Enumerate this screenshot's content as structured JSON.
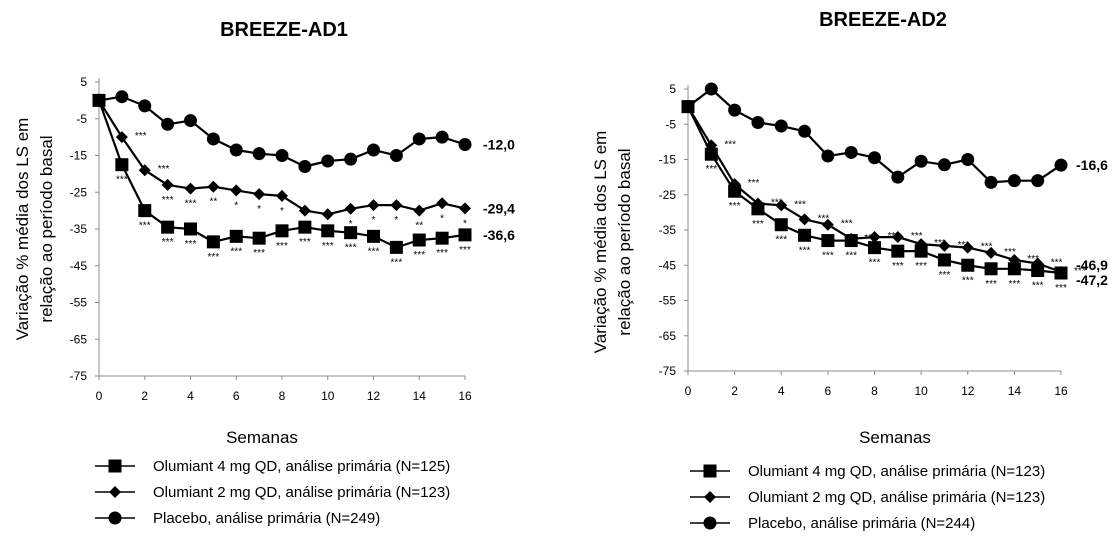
{
  "chart_data": [
    {
      "type": "line",
      "title": "BREEZE-AD1",
      "xlabel": "Semanas",
      "ylabel_lines": [
        "Variação % média dos LS em",
        "relação ao período basal"
      ],
      "xlim": [
        0,
        16
      ],
      "ylim": [
        -75,
        5
      ],
      "xticks": [
        "0",
        "2",
        "4",
        "6",
        "8",
        "10",
        "12",
        "14",
        "16"
      ],
      "yticks": [
        "5",
        "-5",
        "-15",
        "-25",
        "-35",
        "-45",
        "-55",
        "-65",
        "-75"
      ],
      "grid": false,
      "legend_position": "bottom",
      "x": [
        0,
        1,
        2,
        3,
        4,
        5,
        6,
        7,
        8,
        9,
        10,
        11,
        12,
        13,
        14,
        15,
        16
      ],
      "series": [
        {
          "name": "Olumiant 4 mg QD, análise primária (N=125)",
          "marker": "square",
          "values": [
            0,
            -17.5,
            -30,
            -34.5,
            -35,
            -38.5,
            -37,
            -37.5,
            -35.5,
            -34.5,
            -35.5,
            -36,
            -37,
            -40,
            -38,
            -37.5,
            -36.6
          ],
          "end_label": "-36,6",
          "sig_below": [
            "",
            "***",
            "***",
            "***",
            "***",
            "***",
            "***",
            "***",
            "***",
            "***",
            "***",
            "***",
            "***",
            "***",
            "***",
            "***",
            "***"
          ]
        },
        {
          "name": "Olumiant 2 mg QD, análise primária (N=123)",
          "marker": "diamond",
          "values": [
            0,
            -10,
            -19,
            -23,
            -24,
            -23.5,
            -24.5,
            -25.5,
            -26,
            -30,
            -31,
            -29.5,
            -28.5,
            -28.5,
            -30,
            -28,
            -29.4
          ],
          "end_label": "-29,4",
          "sig_above": [
            "",
            "***",
            "***",
            "",
            "",
            "",
            "",
            "",
            "",
            "",
            "",
            "",
            "",
            "",
            "",
            "",
            ""
          ],
          "sig_below": [
            "",
            "",
            "",
            "***",
            "***",
            "**",
            "*",
            "*",
            "*",
            "**",
            "**",
            "*",
            "*",
            "*",
            "**",
            "*",
            "*"
          ]
        },
        {
          "name": "Placebo, análise primária (N=249)",
          "marker": "circle",
          "values": [
            0,
            1,
            -1.5,
            -6.5,
            -5.5,
            -10.5,
            -13.5,
            -14.5,
            -15,
            -18,
            -16.5,
            -16,
            -13.5,
            -15,
            -10.5,
            -10,
            -12
          ],
          "end_label": "-12,0"
        }
      ]
    },
    {
      "type": "line",
      "title": "BREEZE-AD2",
      "xlabel": "Semanas",
      "ylabel_lines": [
        "Variação % média dos LS em",
        "relação ao período basal"
      ],
      "xlim": [
        0,
        16
      ],
      "ylim": [
        -75,
        5
      ],
      "xticks": [
        "0",
        "2",
        "4",
        "6",
        "8",
        "10",
        "12",
        "14",
        "16"
      ],
      "yticks": [
        "5",
        "-5",
        "-15",
        "-25",
        "-35",
        "-45",
        "-55",
        "-65",
        "-75"
      ],
      "grid": false,
      "legend_position": "bottom",
      "x": [
        0,
        1,
        2,
        3,
        4,
        5,
        6,
        7,
        8,
        9,
        10,
        11,
        12,
        13,
        14,
        15,
        16
      ],
      "series": [
        {
          "name": "Olumiant 4 mg QD, análise primária (N=123)",
          "marker": "square",
          "values": [
            0,
            -13.5,
            -24,
            -29,
            -33.5,
            -36.5,
            -38,
            -38,
            -40,
            -41,
            -41,
            -43.5,
            -45,
            -46,
            -46,
            -46.5,
            -47.2
          ],
          "end_label": "-47,2",
          "sig_below": [
            "",
            "***",
            "***",
            "***",
            "***",
            "***",
            "***",
            "***",
            "***",
            "***",
            "***",
            "***",
            "***",
            "***",
            "***",
            "***",
            "***"
          ]
        },
        {
          "name": "Olumiant 2 mg QD, análise primária (N=123)",
          "marker": "diamond",
          "values": [
            0,
            -11,
            -22,
            -27.5,
            -28,
            -32,
            -33.5,
            -37.5,
            -37,
            -37,
            -39,
            -39.5,
            -40,
            -41.5,
            -43.5,
            -44.5,
            -46.9
          ],
          "end_label": "-46,9",
          "sig_above": [
            "",
            "***",
            "***",
            "***",
            "***",
            "***",
            "***",
            "***",
            "***",
            "***",
            "***",
            "***",
            "***",
            "***",
            "***",
            "***",
            "***"
          ]
        },
        {
          "name": "Placebo, análise primária (N=244)",
          "marker": "circle",
          "values": [
            0,
            5,
            -1,
            -4.5,
            -5.5,
            -7,
            -14,
            -13,
            -14.5,
            -20,
            -15.5,
            -16.5,
            -15,
            -21.5,
            -21,
            -21,
            -16.6
          ],
          "end_label": "-16,6"
        }
      ]
    }
  ]
}
